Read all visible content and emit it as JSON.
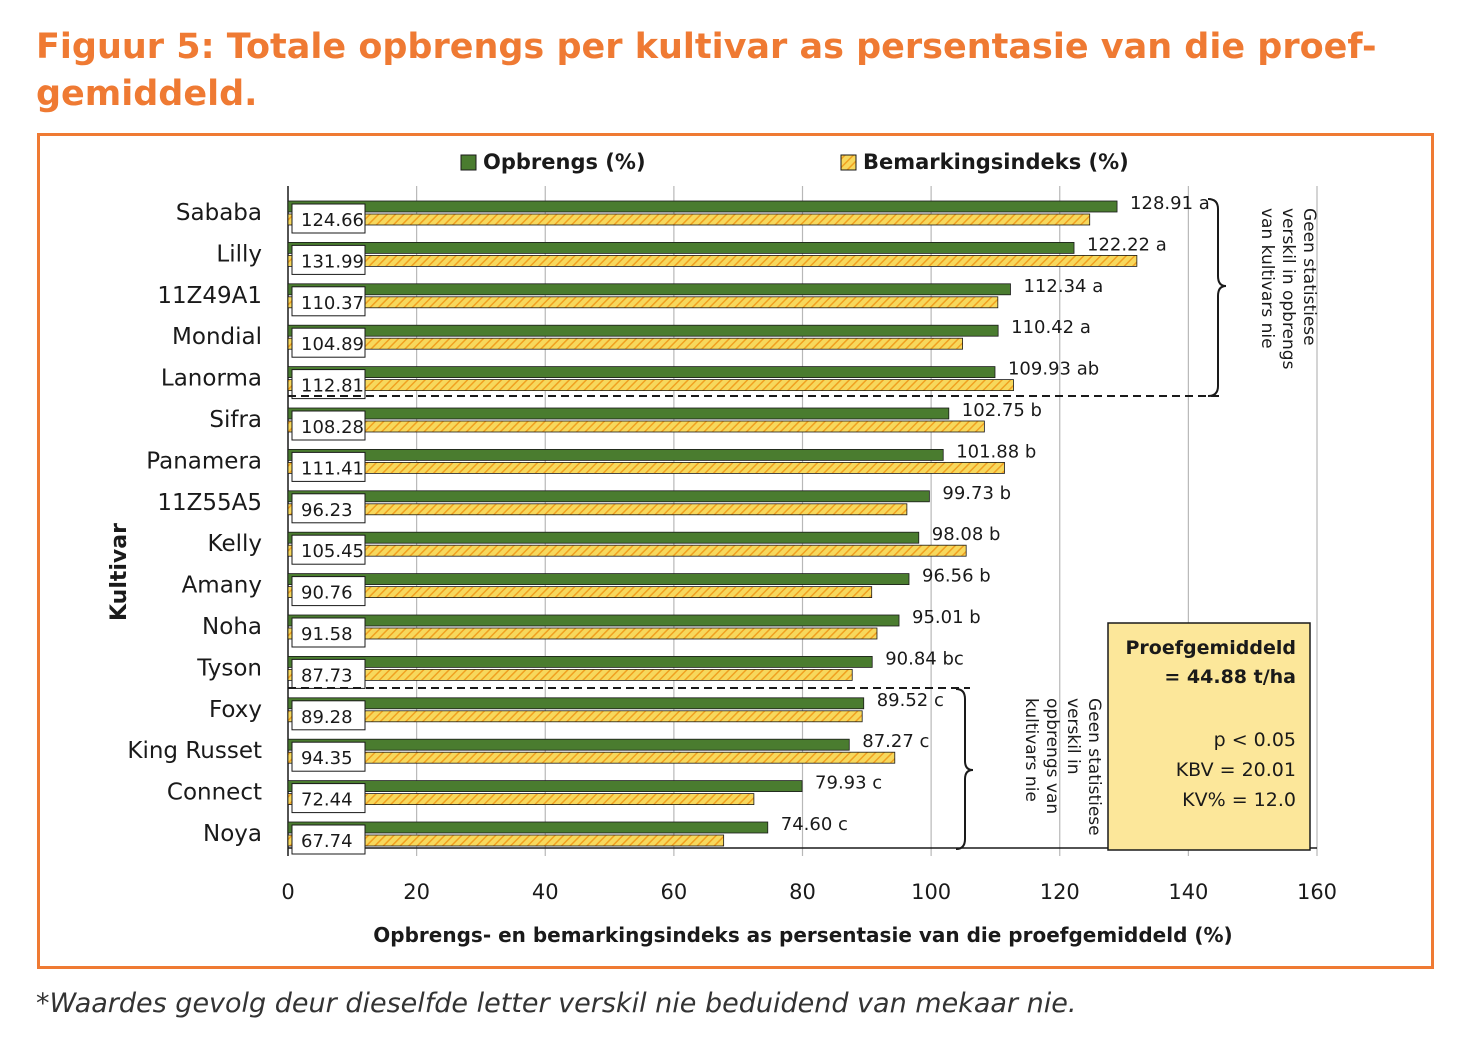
{
  "figure": {
    "title": "Figuur 5: Totale opbrengs per kultivar as persentasie van die proef-gemiddeld.",
    "footnote": "*Waardes gevolg deur dieselfde letter verskil nie beduidend van mekaar nie."
  },
  "colors": {
    "title": "#ef7a33",
    "frame": "#ef7a33",
    "yield_bar": "#4a7c2f",
    "index_bar": "#f7d85c",
    "index_hatch": "#f0a020",
    "info_box": "#fce79a"
  },
  "chart_data": {
    "type": "bar",
    "orientation": "horizontal",
    "categories": [
      "Sababa",
      "Lilly",
      "11Z49A1",
      "Mondial",
      "Lanorma",
      "Sifra",
      "Panamera",
      "11Z55A5",
      "Kelly",
      "Amany",
      "Noha",
      "Tyson",
      "Foxy",
      "King Russet",
      "Connect",
      "Noya"
    ],
    "series": [
      {
        "name": "Opbrengs (%)",
        "values": [
          128.91,
          122.22,
          112.34,
          110.42,
          109.93,
          102.75,
          101.88,
          99.73,
          98.08,
          96.56,
          95.01,
          90.84,
          89.52,
          87.27,
          79.93,
          74.6
        ],
        "labels": [
          "128.91 a",
          "122.22 a",
          "112.34 a",
          "110.42 a",
          "109.93 ab",
          "102.75 b",
          "101.88 b",
          "99.73 b",
          "98.08 b",
          "96.56 b",
          "95.01 b",
          "90.84 bc",
          "89.52 c",
          "87.27 c",
          "79.93 c",
          "74.60 c"
        ]
      },
      {
        "name": "Bemarkingsindeks (%)",
        "values": [
          124.66,
          131.99,
          110.37,
          104.89,
          112.81,
          108.28,
          111.41,
          96.23,
          105.45,
          90.76,
          91.58,
          87.73,
          89.28,
          94.35,
          72.44,
          67.74
        ],
        "labels": [
          "124.66",
          "131.99",
          "110.37",
          "104.89",
          "112.81",
          "108.28",
          "111.41",
          "96.23",
          "105.45",
          "90.76",
          "91.58",
          "87.73",
          "89.28",
          "94.35",
          "72.44",
          "67.74"
        ]
      }
    ],
    "xlabel": "Opbrengs- en bemarkingsindeks as persentasie van die proefgemiddeld (%)",
    "ylabel": "Kultivar",
    "xlim": [
      0,
      160
    ],
    "xticks": [
      0,
      20,
      40,
      60,
      80,
      100,
      120,
      140,
      160
    ],
    "grid": "vertical",
    "legend_position": "top"
  },
  "annotations": {
    "top_group_note": [
      "Geen statistiese",
      "verskil in opbrengs",
      "van kultivars nie"
    ],
    "bottom_group_note": [
      "Geen statistiese",
      "verskil in",
      "opbrengs van",
      "kultivars nie"
    ],
    "info_box": {
      "heading_1": "Proefgemiddeld",
      "heading_2": "= 44.88 t/ha",
      "p_value": "p < 0.05",
      "kbv": "KBV = 20.01",
      "kv": "KV% = 12.0"
    }
  }
}
